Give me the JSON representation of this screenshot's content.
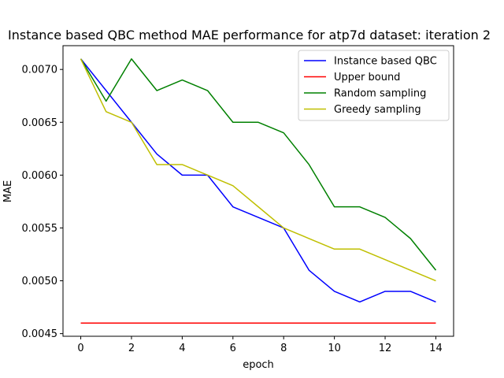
{
  "chart_data": {
    "type": "line",
    "title": "Instance based QBC method MAE performance for atp7d dataset: iteration 2",
    "xlabel": "epoch",
    "ylabel": "MAE",
    "xlim": [
      -0.7,
      14.7
    ],
    "ylim": [
      0.004475,
      0.007225
    ],
    "x_ticks": [
      0,
      2,
      4,
      6,
      8,
      10,
      12,
      14
    ],
    "y_ticks": [
      0.0045,
      0.005,
      0.0055,
      0.006,
      0.0065,
      0.007
    ],
    "y_tick_labels": [
      "0.0045",
      "0.0050",
      "0.0055",
      "0.0060",
      "0.0065",
      "0.0070"
    ],
    "grid": false,
    "legend_position": "top-right",
    "x": [
      0,
      1,
      2,
      3,
      4,
      5,
      6,
      7,
      8,
      9,
      10,
      11,
      12,
      13,
      14
    ],
    "series": [
      {
        "name": "Instance based QBC",
        "color": "#0000ff",
        "values": [
          0.0071,
          0.0068,
          0.0065,
          0.0062,
          0.006,
          0.006,
          0.0057,
          0.0056,
          0.0055,
          0.0051,
          0.0049,
          0.0048,
          0.0049,
          0.0049,
          0.0048
        ]
      },
      {
        "name": "Upper bound",
        "color": "#ff0000",
        "values": [
          0.0046,
          0.0046,
          0.0046,
          0.0046,
          0.0046,
          0.0046,
          0.0046,
          0.0046,
          0.0046,
          0.0046,
          0.0046,
          0.0046,
          0.0046,
          0.0046,
          0.0046
        ]
      },
      {
        "name": "Random sampling",
        "color": "#008000",
        "values": [
          0.0071,
          0.0067,
          0.0071,
          0.0068,
          0.0069,
          0.0068,
          0.0065,
          0.0065,
          0.0064,
          0.0061,
          0.0057,
          0.0057,
          0.0056,
          0.0054,
          0.0051
        ]
      },
      {
        "name": "Greedy sampling",
        "color": "#bfbf00",
        "values": [
          0.0071,
          0.0066,
          0.0065,
          0.0061,
          0.0061,
          0.006,
          0.0059,
          0.0057,
          0.0055,
          0.0054,
          0.0053,
          0.0053,
          0.0052,
          0.0051,
          0.005
        ]
      }
    ]
  }
}
